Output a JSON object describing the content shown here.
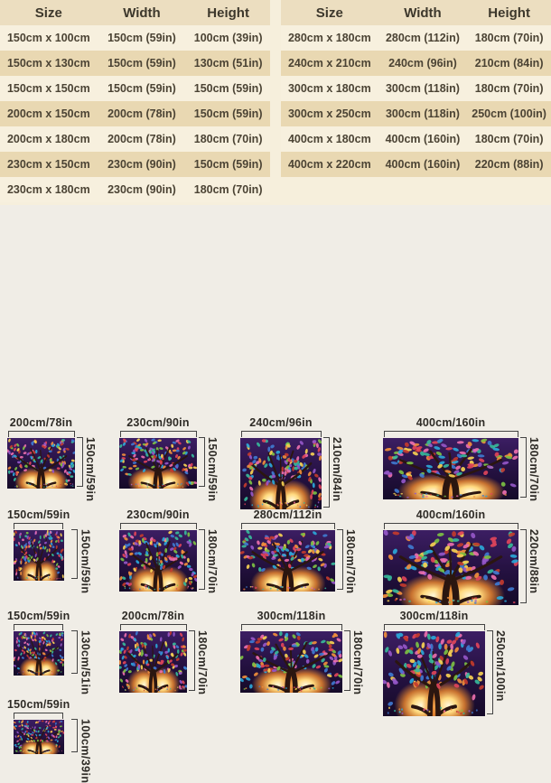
{
  "size_tables": {
    "headers": [
      "Size",
      "Width",
      "Height"
    ],
    "left_rows": [
      [
        "150cm x 100cm",
        "150cm (59in)",
        "100cm (39in)"
      ],
      [
        "150cm x 130cm",
        "150cm (59in)",
        "130cm (51in)"
      ],
      [
        "150cm x 150cm",
        "150cm (59in)",
        "150cm (59in)"
      ],
      [
        "200cm x 150cm",
        "200cm (78in)",
        "150cm (59in)"
      ],
      [
        "200cm x 180cm",
        "200cm (78in)",
        "180cm (70in)"
      ],
      [
        "230cm x 150cm",
        "230cm (90in)",
        "150cm (59in)"
      ],
      [
        "230cm x 180cm",
        "230cm (90in)",
        "180cm (70in)"
      ]
    ],
    "right_rows": [
      [
        "280cm x 180cm",
        "280cm (112in)",
        "180cm (70in)"
      ],
      [
        "240cm x 210cm",
        "240cm (96in)",
        "210cm (84in)"
      ],
      [
        "300cm x 180cm",
        "300cm (118in)",
        "180cm (70in)"
      ],
      [
        "300cm x 250cm",
        "300cm (118in)",
        "250cm (100in)"
      ],
      [
        "400cm x 180cm",
        "400cm (160in)",
        "180cm (70in)"
      ],
      [
        "400cm x 220cm",
        "400cm (160in)",
        "220cm (88in)"
      ]
    ]
  },
  "figures": [
    {
      "width_cm": 200,
      "height_cm": 150,
      "width_label": "200cm/78in",
      "height_label": "150cm/59in",
      "col": 0,
      "row": 0
    },
    {
      "width_cm": 230,
      "height_cm": 150,
      "width_label": "230cm/90in",
      "height_label": "150cm/59in",
      "col": 1,
      "row": 0
    },
    {
      "width_cm": 240,
      "height_cm": 210,
      "width_label": "240cm/96in",
      "height_label": "210cm/84in",
      "col": 2,
      "row": 0
    },
    {
      "width_cm": 400,
      "height_cm": 180,
      "width_label": "400cm/160in",
      "height_label": "180cm/70in",
      "col": 3,
      "row": 0
    },
    {
      "width_cm": 150,
      "height_cm": 150,
      "width_label": "150cm/59in",
      "height_label": "150cm/59in",
      "col": 0,
      "row": 1
    },
    {
      "width_cm": 230,
      "height_cm": 180,
      "width_label": "230cm/90in",
      "height_label": "180cm/70in",
      "col": 1,
      "row": 1
    },
    {
      "width_cm": 280,
      "height_cm": 180,
      "width_label": "280cm/112in",
      "height_label": "180cm/70in",
      "col": 2,
      "row": 1
    },
    {
      "width_cm": 400,
      "height_cm": 220,
      "width_label": "400cm/160in",
      "height_label": "220cm/88in",
      "col": 3,
      "row": 1
    },
    {
      "width_cm": 150,
      "height_cm": 130,
      "width_label": "150cm/59in",
      "height_label": "130cm/51in",
      "col": 0,
      "row": 2
    },
    {
      "width_cm": 200,
      "height_cm": 180,
      "width_label": "200cm/78in",
      "height_label": "180cm/70in",
      "col": 1,
      "row": 2
    },
    {
      "width_cm": 300,
      "height_cm": 180,
      "width_label": "300cm/118in",
      "height_label": "180cm/70in",
      "col": 2,
      "row": 2
    },
    {
      "width_cm": 300,
      "height_cm": 250,
      "width_label": "300cm/118in",
      "height_label": "250cm/100in",
      "col": 3,
      "row": 2
    },
    {
      "width_cm": 150,
      "height_cm": 100,
      "width_label": "150cm/59in",
      "height_label": "100cm/39in",
      "col": 0,
      "row": 3
    }
  ],
  "art": {
    "description": "stained-glass tree of life tapestry with glowing orbs",
    "palette": [
      "#e0445a",
      "#f08e3c",
      "#f6d052",
      "#37b89a",
      "#3f79d0",
      "#9557c8",
      "#ec6fae",
      "#7cc043",
      "#2ba7d8",
      "#c23b2e"
    ],
    "background": "#241040",
    "trunk": "#2b1610"
  },
  "colors": {
    "table_bg": "#f6efdc",
    "row_light": "#f7f0de",
    "row_tan": "#e9d8b2",
    "header_band": "#ecdec0",
    "table_text": "#4b4334",
    "bottom_bg": "#f0ede6",
    "label_text": "#2e2b26",
    "bracket": "#434343"
  }
}
